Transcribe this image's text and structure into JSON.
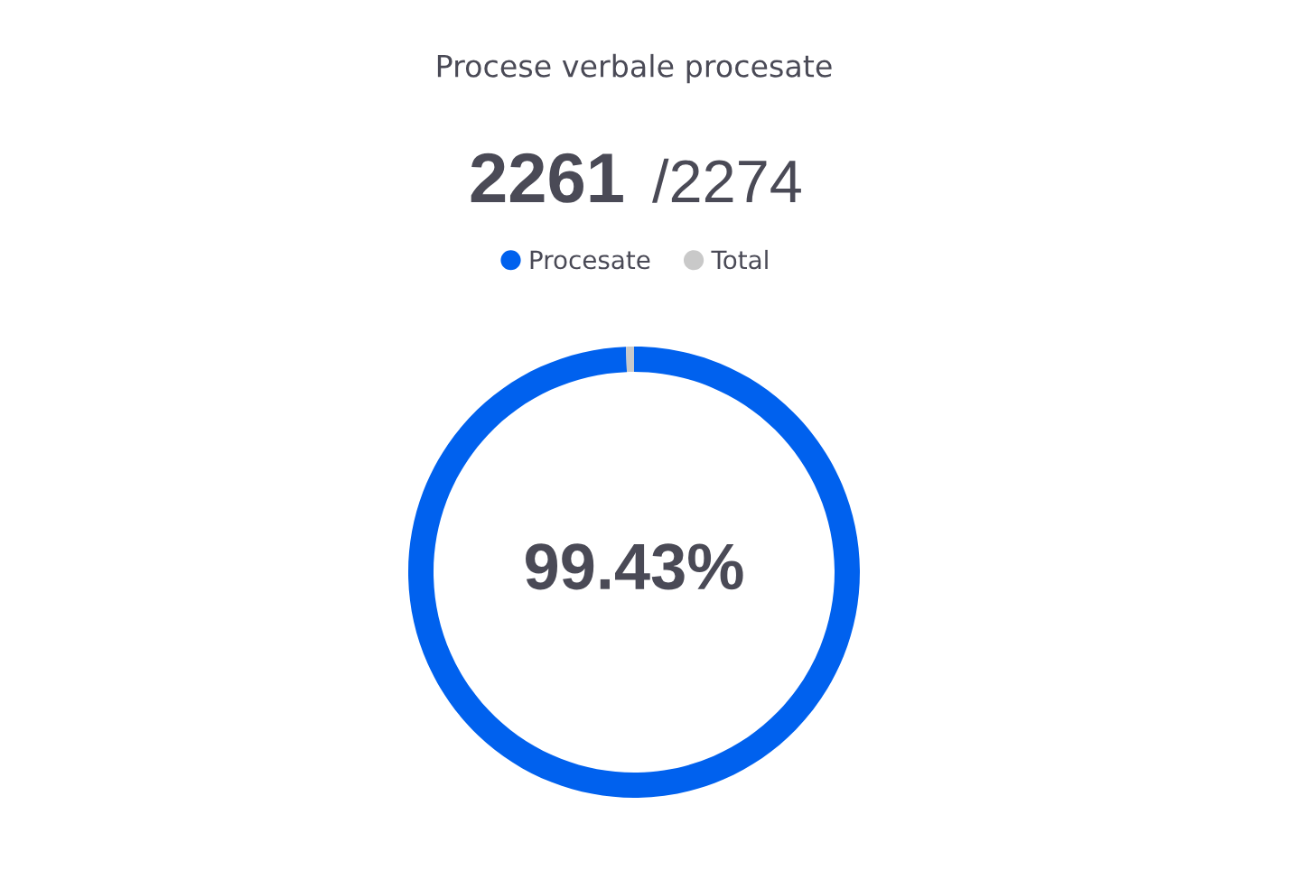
{
  "chart_data": {
    "type": "donut",
    "title": "Procese verbale procesate",
    "annotations": [
      "2261",
      "/2274"
    ],
    "categories": [
      "Procesate",
      "Total"
    ],
    "values": [
      99.43,
      0.57
    ],
    "value_labels": [
      "99.43%",
      null
    ],
    "colors": [
      "#0061ee",
      "#c9c9c9"
    ],
    "legend": "top"
  }
}
